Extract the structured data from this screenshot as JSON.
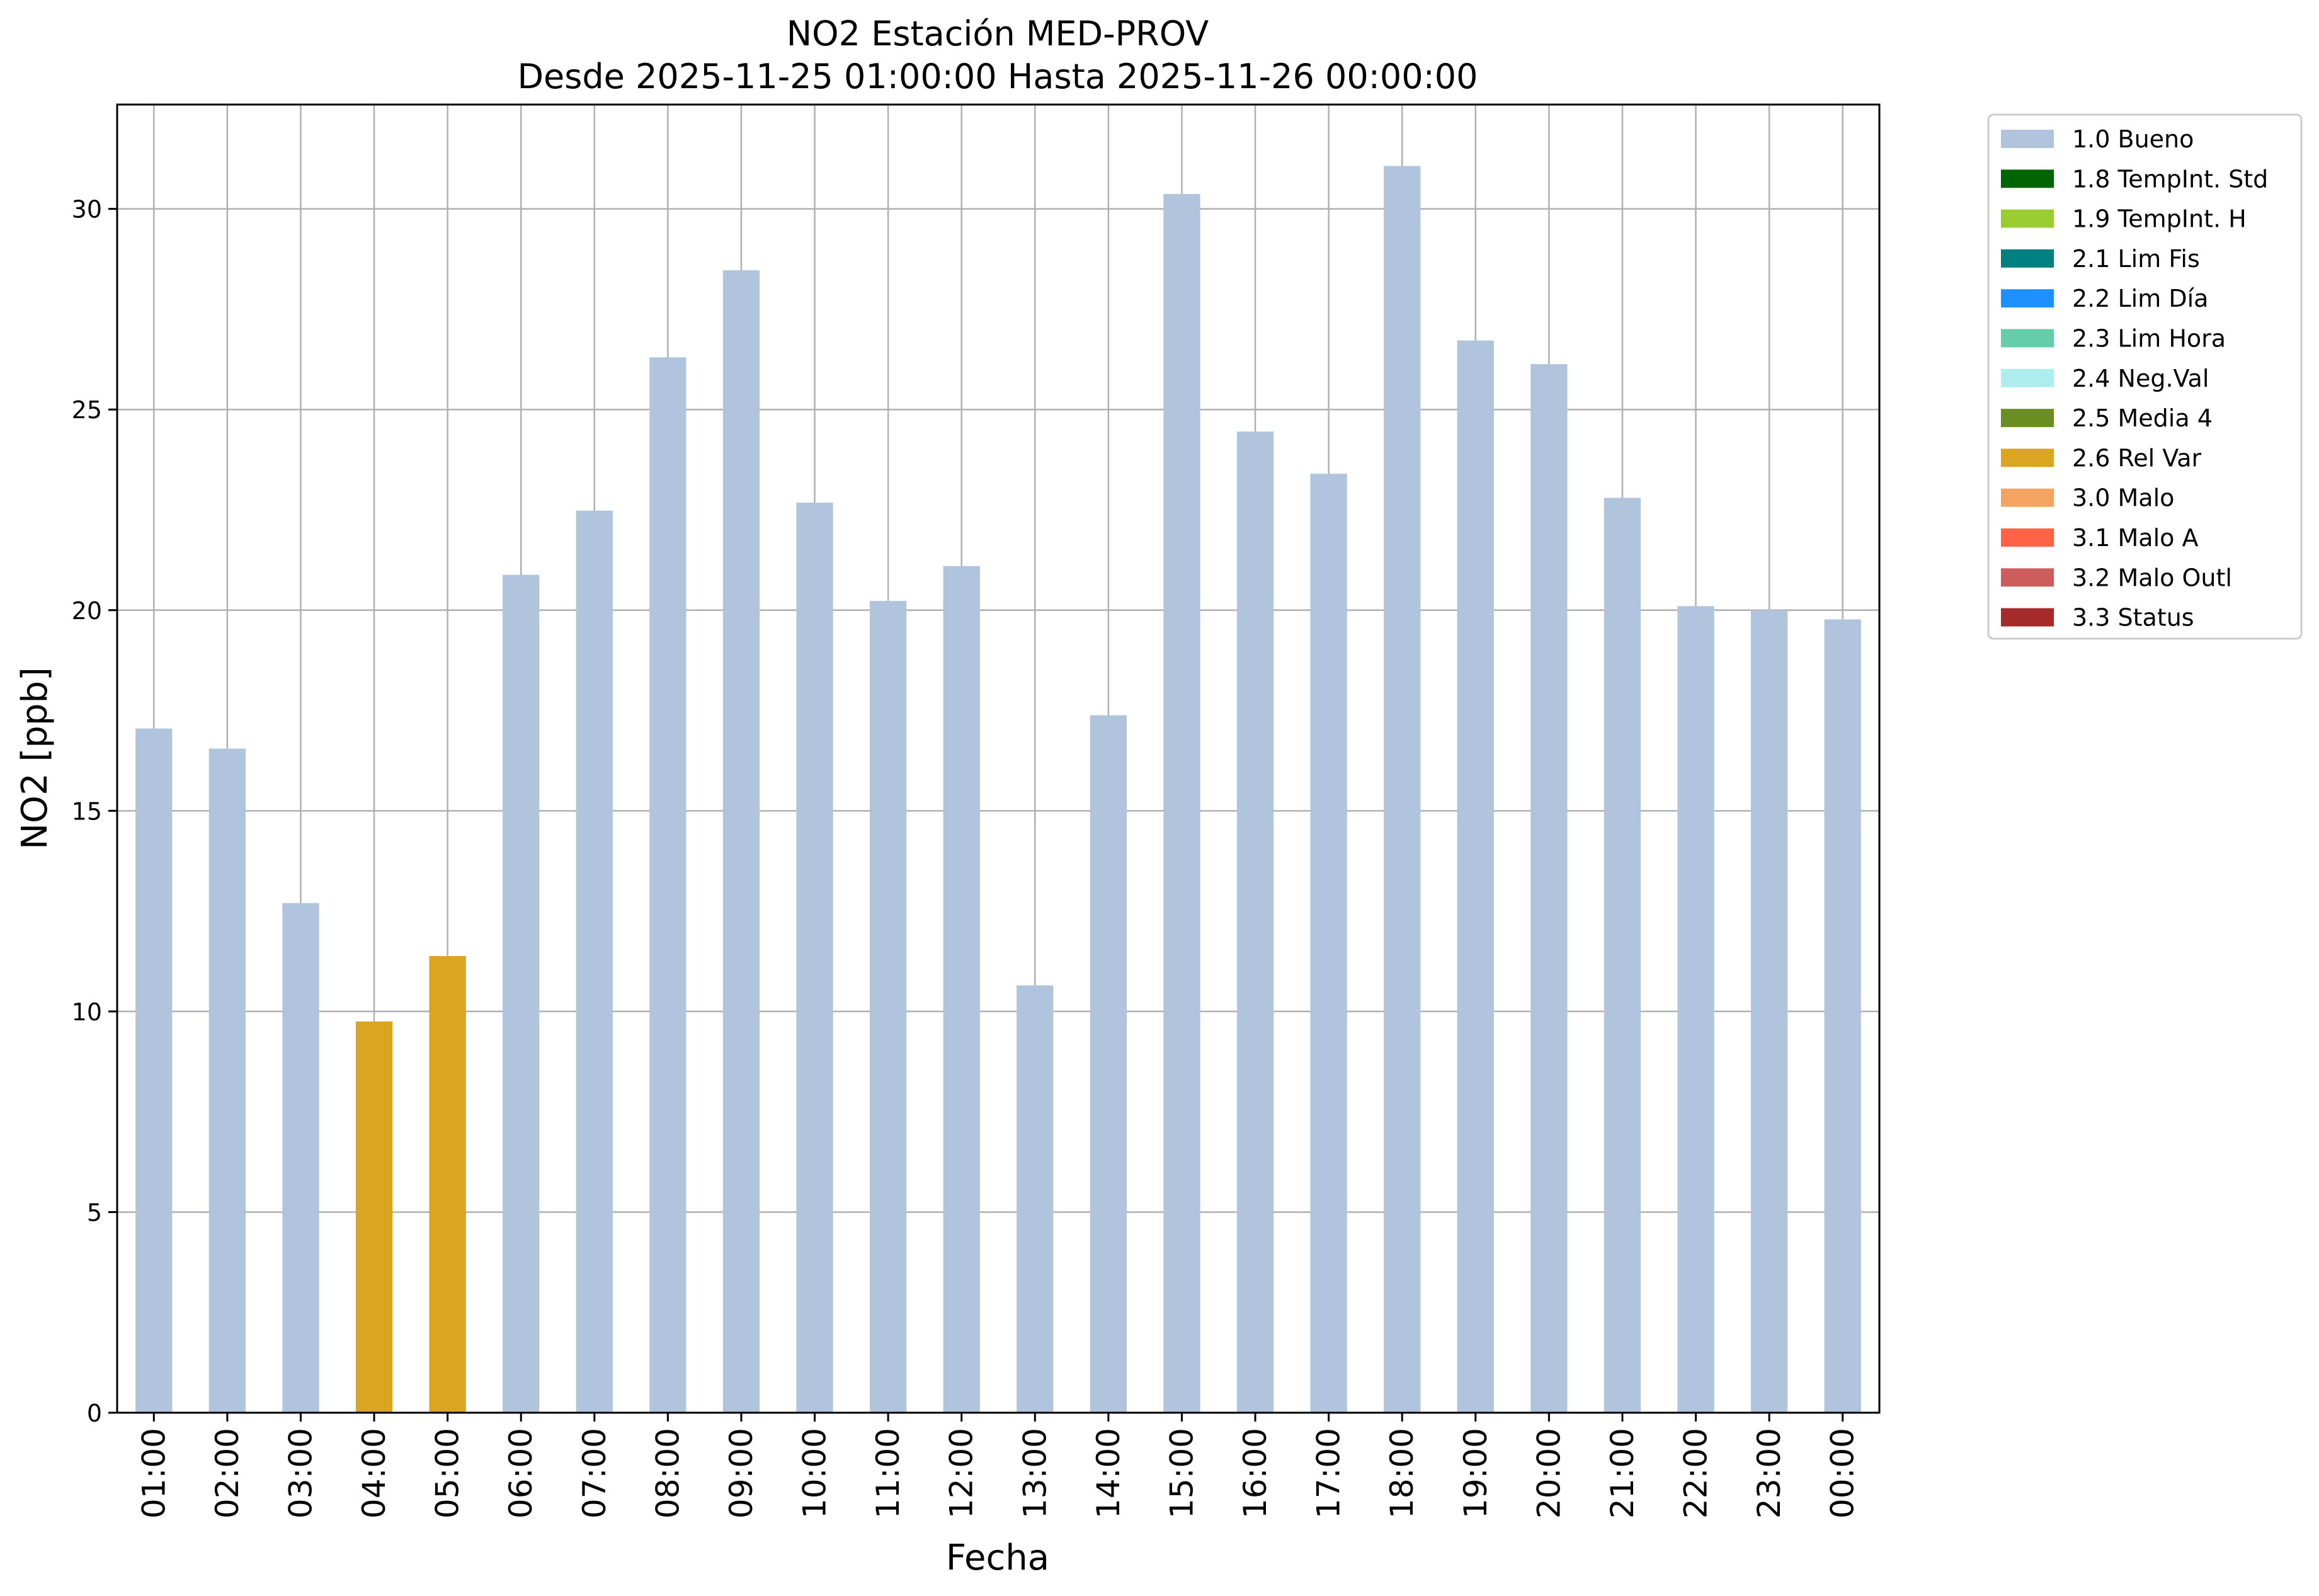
{
  "chart_data": {
    "type": "bar",
    "title": "NO2 Estación MED-PROV",
    "subtitle": "Desde 2025-11-25 01:00:00 Hasta 2025-11-26 00:00:00",
    "xlabel": "Fecha",
    "ylabel": "NO2 [ppb]",
    "ylim": [
      0,
      32.6
    ],
    "yticks": [
      0,
      5,
      10,
      15,
      20,
      25,
      30
    ],
    "grid": true,
    "legend_position": "outside-right",
    "categories": [
      "01:00",
      "02:00",
      "03:00",
      "04:00",
      "05:00",
      "06:00",
      "07:00",
      "08:00",
      "09:00",
      "10:00",
      "11:00",
      "12:00",
      "13:00",
      "14:00",
      "15:00",
      "16:00",
      "17:00",
      "18:00",
      "19:00",
      "20:00",
      "21:00",
      "22:00",
      "23:00",
      "00:00"
    ],
    "values": [
      17.05,
      16.55,
      12.7,
      9.75,
      11.38,
      20.88,
      22.48,
      26.3,
      28.47,
      22.68,
      20.23,
      21.1,
      10.65,
      17.38,
      30.37,
      24.45,
      23.4,
      31.07,
      26.72,
      26.13,
      22.8,
      20.1,
      20.0,
      19.77
    ],
    "flags": [
      "1.0",
      "1.0",
      "1.0",
      "2.6",
      "2.6",
      "1.0",
      "1.0",
      "1.0",
      "1.0",
      "1.0",
      "1.0",
      "1.0",
      "1.0",
      "1.0",
      "1.0",
      "1.0",
      "1.0",
      "1.0",
      "1.0",
      "1.0",
      "1.0",
      "1.0",
      "1.0",
      "1.0"
    ],
    "legend": [
      {
        "code": "1.0",
        "label": "1.0 Bueno",
        "color": "#b0c4de"
      },
      {
        "code": "1.8",
        "label": "1.8 TempInt. Std",
        "color": "#006400"
      },
      {
        "code": "1.9",
        "label": "1.9 TempInt. H",
        "color": "#9acd32"
      },
      {
        "code": "2.1",
        "label": "2.1 Lim Fis",
        "color": "#008080"
      },
      {
        "code": "2.2",
        "label": "2.2 Lim Día",
        "color": "#1e90ff"
      },
      {
        "code": "2.3",
        "label": "2.3 Lim Hora",
        "color": "#66cdaa"
      },
      {
        "code": "2.4",
        "label": "2.4 Neg.Val",
        "color": "#afeeee"
      },
      {
        "code": "2.5",
        "label": "2.5 Media 4",
        "color": "#6b8e23"
      },
      {
        "code": "2.6",
        "label": "2.6 Rel Var",
        "color": "#daa520"
      },
      {
        "code": "3.0",
        "label": "3.0 Malo",
        "color": "#f4a460"
      },
      {
        "code": "3.1",
        "label": "3.1 Malo A",
        "color": "#ff6347"
      },
      {
        "code": "3.2",
        "label": "3.2 Malo Outl",
        "color": "#cd5c5c"
      },
      {
        "code": "3.3",
        "label": "3.3 Status",
        "color": "#a52a2a"
      }
    ]
  }
}
